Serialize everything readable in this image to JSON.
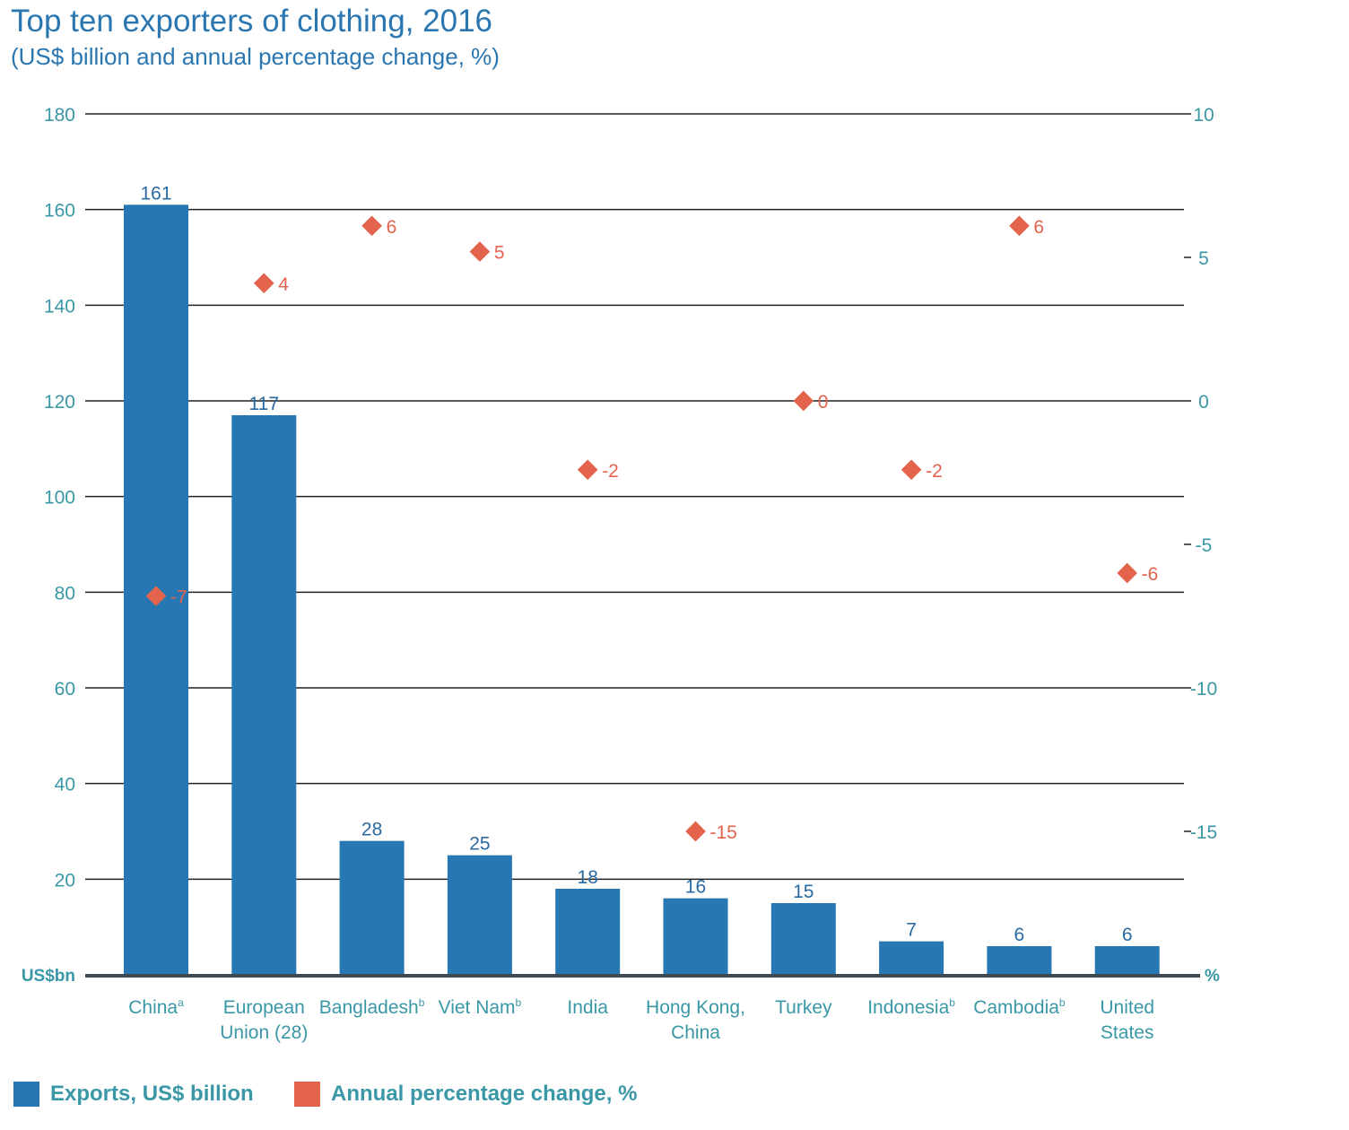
{
  "title": "Top ten exporters of clothing, 2016",
  "subtitle": "(US$ billion and annual percentage change, %)",
  "colors": {
    "bar": "#2677b2",
    "marker": "#e4634d",
    "axis_text": "#3a97a6",
    "title": "#2a76b0"
  },
  "chart_data": {
    "type": "bar",
    "categories": [
      {
        "lines": [
          "China"
        ],
        "note": "a"
      },
      {
        "lines": [
          "European",
          "Union (28)"
        ],
        "note": ""
      },
      {
        "lines": [
          "Bangladesh"
        ],
        "note": "b"
      },
      {
        "lines": [
          "Viet Nam"
        ],
        "note": "b"
      },
      {
        "lines": [
          "India"
        ],
        "note": ""
      },
      {
        "lines": [
          "Hong Kong,",
          "China"
        ],
        "note": ""
      },
      {
        "lines": [
          "Turkey"
        ],
        "note": ""
      },
      {
        "lines": [
          "Indonesia"
        ],
        "note": "b"
      },
      {
        "lines": [
          "Cambodia"
        ],
        "note": "b"
      },
      {
        "lines": [
          "United",
          "States"
        ],
        "note": ""
      }
    ],
    "series": [
      {
        "name": "Exports, US$ billion",
        "type": "bar",
        "axis": "left",
        "values": [
          161,
          117,
          28,
          25,
          18,
          16,
          15,
          7,
          6,
          6
        ],
        "labels": [
          "161",
          "117",
          "28",
          "25",
          "18",
          "16",
          "15",
          "7",
          "6",
          "6"
        ]
      },
      {
        "name": "Annual percentage change, %",
        "type": "scatter",
        "marker": "diamond",
        "axis": "right",
        "values": [
          -6.8,
          4.1,
          6.1,
          5.2,
          -2.4,
          -15,
          0,
          -2.4,
          6.1,
          -6
        ],
        "labels": [
          "-7",
          "4",
          "6",
          "5",
          "-2",
          "-15",
          "0",
          "-2",
          "6",
          "-6"
        ]
      }
    ],
    "left_axis": {
      "label": "US$bn",
      "ylim": [
        0,
        180
      ],
      "ticks": [
        20,
        40,
        60,
        80,
        100,
        120,
        140,
        160,
        180
      ]
    },
    "right_axis": {
      "label": "%",
      "ylim": [
        -20,
        10
      ],
      "ticks": [
        10,
        5,
        0,
        -5,
        -10,
        -15
      ]
    },
    "grid": true,
    "legend": "bottom-left"
  }
}
